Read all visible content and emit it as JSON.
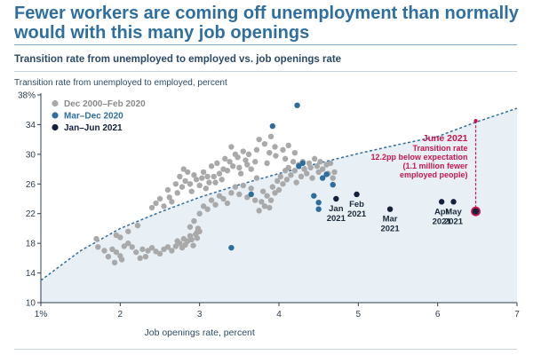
{
  "header": {
    "title": "Fewer workers are coming off unemployment than normally would with this many job openings",
    "subtitle": "Transition rate from unemployed to employed vs. job openings rate"
  },
  "chart_data": {
    "type": "scatter",
    "title": "Transition rate from unemployed to employed vs. job openings rate",
    "ylabel": "Transition rate from unemployed to employed, percent",
    "xlabel": "Job openings rate, percent",
    "xlim": [
      1,
      7
    ],
    "ylim": [
      10,
      38
    ],
    "xticks": [
      "1%",
      "2",
      "3",
      "4",
      "5",
      "6",
      "7"
    ],
    "yticks": [
      "10",
      "14",
      "18",
      "22",
      "26",
      "30",
      "34",
      "38%"
    ],
    "grid": false,
    "legend_position": "top-left",
    "colors": {
      "pre": "#a9a9a9",
      "covid": "#2e6e9e",
      "recovery": "#14213d",
      "june": "#c8174f",
      "curve": "#2e6e9e",
      "shade": "#e8f0f6"
    },
    "expected_curve": {
      "style": "dashed",
      "points": [
        [
          1,
          13.0
        ],
        [
          1.5,
          17.0
        ],
        [
          2,
          20.0
        ],
        [
          2.5,
          22.2
        ],
        [
          3,
          24.2
        ],
        [
          3.5,
          25.9
        ],
        [
          4,
          27.4
        ],
        [
          4.5,
          28.8
        ],
        [
          5,
          30.1
        ],
        [
          5.5,
          31.3
        ],
        [
          6,
          32.4
        ],
        [
          6.5,
          34.4
        ],
        [
          7,
          36.2
        ]
      ]
    },
    "series": [
      {
        "name": "Dec 2000–Feb 2020",
        "points": [
          [
            1.7,
            18.6
          ],
          [
            1.72,
            17.5
          ],
          [
            1.8,
            17.0
          ],
          [
            1.85,
            16.2
          ],
          [
            1.9,
            17.2
          ],
          [
            1.93,
            15.4
          ],
          [
            1.95,
            16.8
          ],
          [
            2.0,
            16.3
          ],
          [
            2.02,
            15.8
          ],
          [
            2.05,
            17.6
          ],
          [
            2.1,
            18.0
          ],
          [
            2.15,
            17.5
          ],
          [
            2.2,
            16.8
          ],
          [
            2.25,
            16.0
          ],
          [
            2.28,
            17.2
          ],
          [
            2.32,
            16.2
          ],
          [
            2.35,
            17.0
          ],
          [
            2.4,
            17.4
          ],
          [
            2.45,
            16.9
          ],
          [
            2.5,
            16.6
          ],
          [
            2.55,
            17.2
          ],
          [
            2.6,
            17.5
          ],
          [
            2.65,
            17.0
          ],
          [
            2.7,
            17.6
          ],
          [
            2.72,
            18.3
          ],
          [
            2.75,
            18.0
          ],
          [
            2.78,
            17.4
          ],
          [
            2.8,
            18.6
          ],
          [
            2.82,
            17.8
          ],
          [
            2.85,
            18.3
          ],
          [
            2.88,
            19.0
          ],
          [
            2.9,
            18.5
          ],
          [
            2.92,
            17.7
          ],
          [
            2.95,
            19.2
          ],
          [
            2.97,
            18.7
          ],
          [
            2.98,
            20.0
          ],
          [
            3.0,
            19.6
          ],
          [
            2.88,
            20.2
          ],
          [
            2.93,
            21.0
          ],
          [
            2.97,
            19.5
          ],
          [
            2.1,
            19.6
          ],
          [
            2.0,
            18.8
          ],
          [
            2.22,
            20.4
          ],
          [
            1.95,
            19.1
          ],
          [
            2.4,
            22.8
          ],
          [
            2.45,
            23.4
          ],
          [
            2.5,
            24.0
          ],
          [
            2.55,
            23.0
          ],
          [
            2.6,
            25.2
          ],
          [
            2.62,
            24.2
          ],
          [
            2.65,
            23.6
          ],
          [
            2.7,
            26.0
          ],
          [
            2.72,
            24.8
          ],
          [
            2.75,
            27.0
          ],
          [
            2.78,
            25.6
          ],
          [
            2.8,
            28.0
          ],
          [
            2.82,
            26.4
          ],
          [
            2.85,
            27.6
          ],
          [
            2.88,
            26.0
          ],
          [
            2.9,
            25.0
          ],
          [
            2.93,
            27.2
          ],
          [
            2.96,
            26.6
          ],
          [
            3.0,
            25.8
          ],
          [
            3.03,
            26.8
          ],
          [
            3.05,
            27.6
          ],
          [
            3.08,
            25.4
          ],
          [
            3.1,
            27.0
          ],
          [
            3.12,
            26.2
          ],
          [
            3.15,
            28.4
          ],
          [
            3.18,
            27.0
          ],
          [
            3.2,
            26.2
          ],
          [
            3.22,
            28.8
          ],
          [
            3.25,
            27.4
          ],
          [
            3.28,
            26.6
          ],
          [
            3.3,
            28.0
          ],
          [
            3.32,
            29.4
          ],
          [
            3.35,
            27.8
          ],
          [
            3.38,
            29.0
          ],
          [
            3.4,
            31.0
          ],
          [
            3.42,
            28.4
          ],
          [
            3.45,
            30.0
          ],
          [
            3.48,
            29.6
          ],
          [
            3.5,
            28.2
          ],
          [
            3.52,
            27.4
          ],
          [
            3.55,
            30.4
          ],
          [
            3.58,
            29.2
          ],
          [
            3.6,
            28.6
          ],
          [
            3.62,
            30.0
          ],
          [
            3.65,
            28.0
          ],
          [
            3.7,
            29.0
          ],
          [
            3.0,
            22.0
          ],
          [
            3.05,
            23.0
          ],
          [
            3.1,
            22.6
          ],
          [
            3.15,
            23.8
          ],
          [
            3.2,
            23.2
          ],
          [
            3.25,
            24.4
          ],
          [
            3.3,
            24.0
          ],
          [
            3.35,
            23.4
          ],
          [
            3.4,
            24.8
          ],
          [
            3.45,
            25.6
          ],
          [
            3.5,
            24.6
          ],
          [
            3.55,
            25.8
          ],
          [
            3.6,
            24.2
          ],
          [
            3.65,
            25.4
          ],
          [
            3.7,
            23.8
          ],
          [
            3.72,
            26.8
          ],
          [
            3.75,
            22.4
          ],
          [
            3.78,
            23.6
          ],
          [
            3.8,
            25.0
          ],
          [
            3.82,
            23.0
          ],
          [
            3.85,
            24.4
          ],
          [
            3.88,
            22.8
          ],
          [
            3.9,
            23.8
          ],
          [
            3.92,
            25.6
          ],
          [
            3.95,
            24.8
          ],
          [
            3.98,
            26.4
          ],
          [
            4.0,
            25.2
          ],
          [
            4.02,
            27.0
          ],
          [
            4.05,
            26.0
          ],
          [
            4.08,
            27.8
          ],
          [
            4.1,
            26.6
          ],
          [
            4.12,
            28.2
          ],
          [
            4.15,
            27.2
          ],
          [
            4.18,
            29.0
          ],
          [
            4.2,
            27.8
          ],
          [
            4.22,
            26.2
          ],
          [
            4.25,
            28.6
          ],
          [
            4.28,
            27.0
          ],
          [
            4.3,
            29.0
          ],
          [
            4.32,
            28.0
          ],
          [
            4.35,
            27.4
          ],
          [
            4.38,
            28.8
          ],
          [
            4.4,
            28.2
          ],
          [
            4.42,
            26.8
          ],
          [
            4.45,
            29.4
          ],
          [
            4.48,
            28.4
          ],
          [
            4.5,
            27.6
          ],
          [
            4.52,
            29.0
          ],
          [
            4.55,
            28.0
          ],
          [
            4.6,
            28.6
          ],
          [
            4.62,
            27.4
          ],
          [
            4.65,
            28.8
          ],
          [
            4.68,
            26.8
          ],
          [
            4.7,
            27.6
          ],
          [
            3.82,
            31.4
          ],
          [
            3.88,
            30.2
          ],
          [
            3.9,
            32.4
          ],
          [
            3.95,
            31.0
          ],
          [
            3.75,
            32.0
          ],
          [
            4.05,
            30.6
          ],
          [
            4.08,
            29.4
          ],
          [
            4.12,
            31.2
          ],
          [
            3.72,
            30.6
          ],
          [
            3.96,
            29.8
          ],
          [
            4.2,
            30.2
          ],
          [
            3.85,
            28.8
          ]
        ]
      },
      {
        "name": "Mar–Dec 2020",
        "points": [
          [
            3.4,
            17.4
          ],
          [
            3.92,
            33.8
          ],
          [
            4.23,
            36.6
          ],
          [
            4.3,
            28.8
          ],
          [
            4.44,
            24.4
          ],
          [
            4.5,
            23.5
          ],
          [
            4.5,
            22.6
          ],
          [
            4.55,
            26.8
          ],
          [
            4.6,
            27.3
          ],
          [
            4.25,
            28.4
          ],
          [
            4.68,
            25.9
          ],
          [
            3.65,
            24.6
          ]
        ]
      },
      {
        "name": "Jan–Jun 2021",
        "points": [
          [
            4.72,
            24.0
          ],
          [
            4.98,
            24.6
          ],
          [
            5.4,
            22.6
          ],
          [
            6.05,
            23.6
          ],
          [
            6.2,
            23.6
          ],
          [
            6.48,
            22.3
          ]
        ],
        "labels": [
          "Jan 2021",
          "Feb 2021",
          "Mar 2021",
          "Apr 2021",
          "May 2021",
          "June 2021"
        ]
      }
    ],
    "annotation": {
      "title": "June 2021",
      "lines": [
        "Transition rate",
        "12.2pp below expectation",
        "(1.1 million fewer",
        "employed people)"
      ],
      "x": 6.48,
      "from_y": 34.5,
      "to_y": 22.3
    }
  }
}
